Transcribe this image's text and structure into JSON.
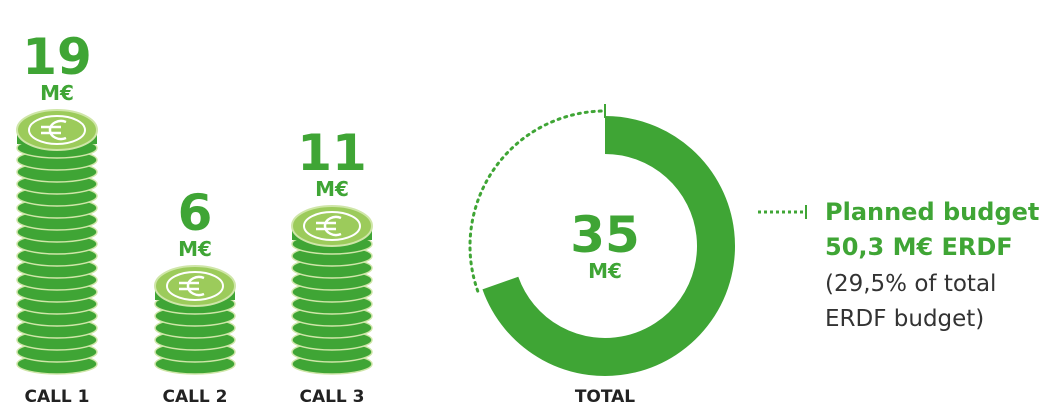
{
  "chart_data": {
    "type": "coin-stack",
    "unit": "M€",
    "categories": [
      "CALL 1",
      "CALL 2",
      "CALL 3"
    ],
    "values": [
      19,
      6,
      11
    ],
    "color": "#3fa535",
    "total": {
      "label": "TOTAL",
      "value": 35
    },
    "planned": {
      "title": "Planned budget",
      "value": 50.3,
      "label": "50,3 M€ ERDF",
      "note": [
        "(29,5% of total",
        "ERDF budget)"
      ]
    }
  }
}
